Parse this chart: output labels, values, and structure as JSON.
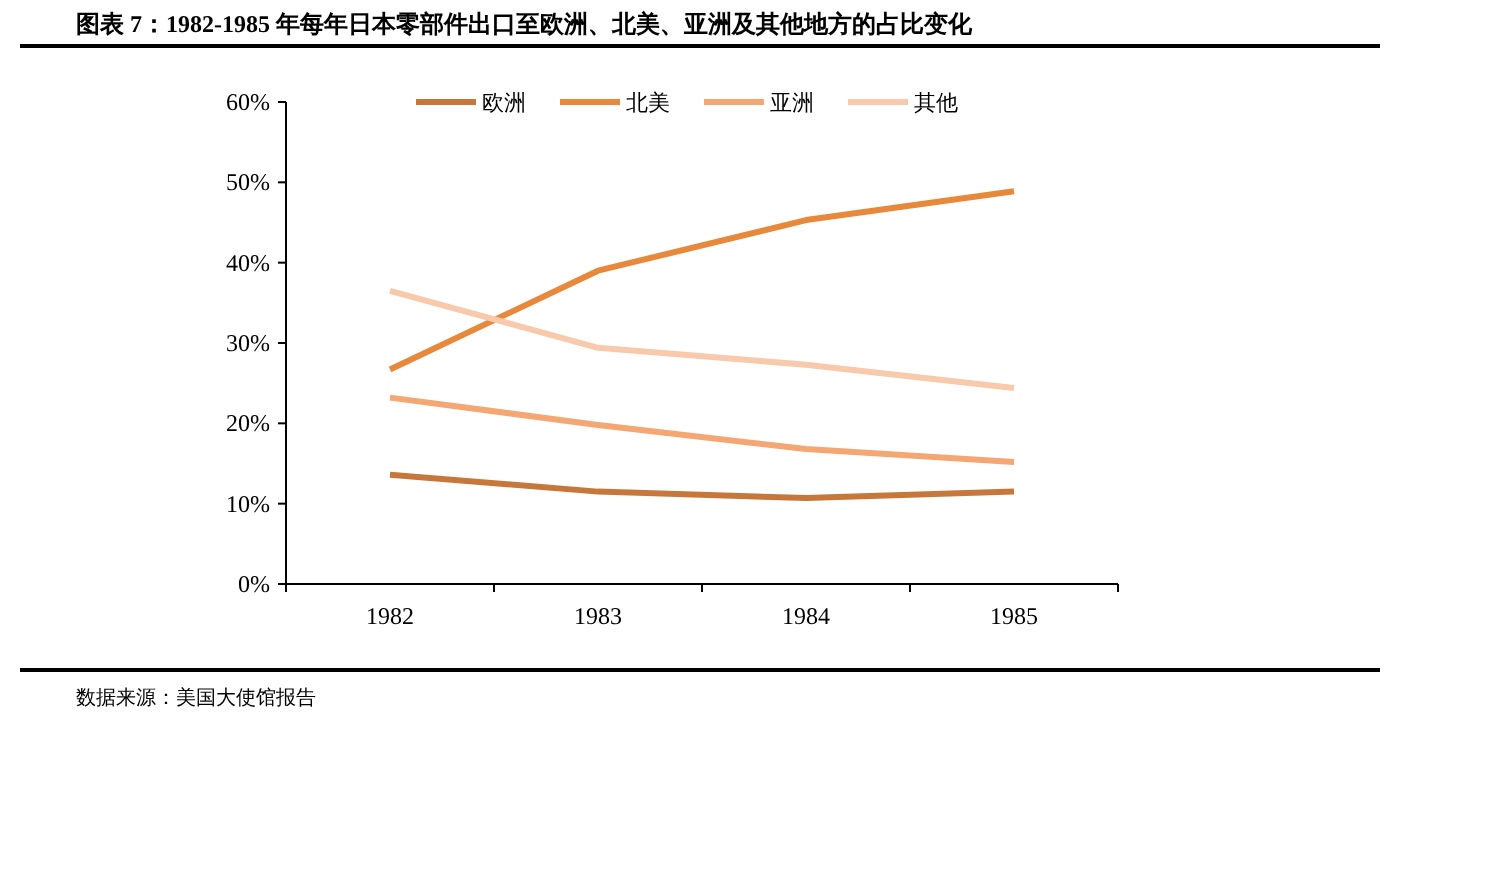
{
  "chart_data": {
    "type": "line",
    "title": "图表 7：1982-1985 年每年日本零部件出口至欧洲、北美、亚洲及其他地方的占比变化",
    "categories": [
      "1982",
      "1983",
      "1984",
      "1985"
    ],
    "series": [
      {
        "name": "欧洲",
        "color": "#c8773a",
        "values": [
          13.6,
          11.5,
          10.7,
          11.5
        ]
      },
      {
        "name": "北美",
        "color": "#e8883a",
        "values": [
          26.7,
          39,
          45.3,
          48.9
        ]
      },
      {
        "name": "亚洲",
        "color": "#f4a673",
        "values": [
          23.2,
          19.8,
          16.8,
          15.2
        ]
      },
      {
        "name": "其他",
        "color": "#f8c9ab",
        "values": [
          36.5,
          29.4,
          27.3,
          24.4
        ]
      }
    ],
    "ylim": [
      0,
      60
    ],
    "yticks": [
      {
        "value": 0,
        "label": "0%"
      },
      {
        "value": 10,
        "label": "10%"
      },
      {
        "value": 20,
        "label": "20%"
      },
      {
        "value": 30,
        "label": "30%"
      },
      {
        "value": 40,
        "label": "40%"
      },
      {
        "value": 50,
        "label": "50%"
      },
      {
        "value": 60,
        "label": "60%"
      }
    ],
    "grid": false,
    "legend": "top",
    "marker": "none",
    "line_style": "solid",
    "annotations": [
      "数据来源：美国大使馆报告"
    ]
  }
}
